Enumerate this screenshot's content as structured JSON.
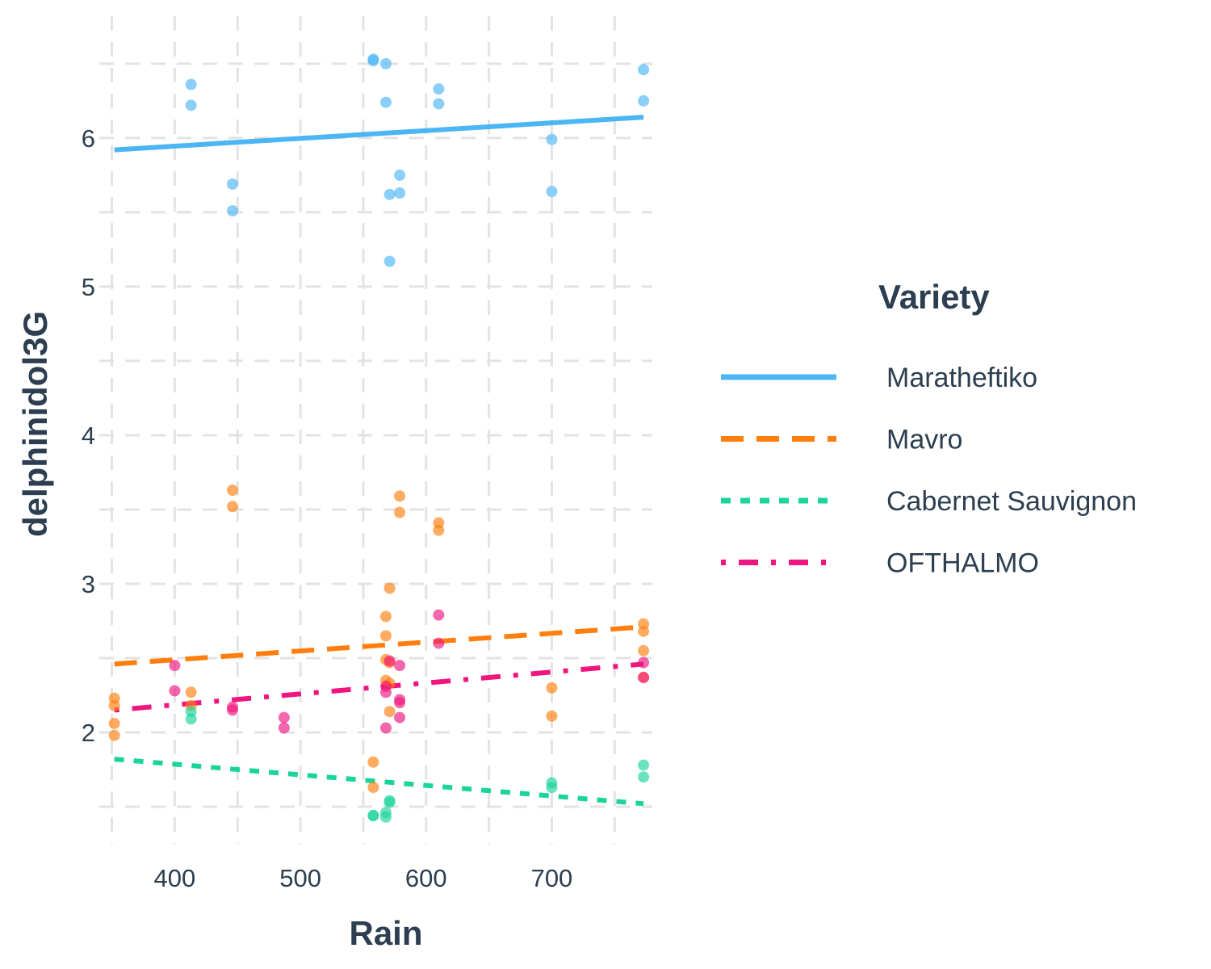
{
  "chart_data": {
    "type": "scatter",
    "title": "",
    "xlabel": "Rain",
    "ylabel": "delphinidol3G",
    "xlim": [
      340,
      780
    ],
    "ylim": [
      1.25,
      6.82
    ],
    "x_ticks": [
      400,
      500,
      600,
      700
    ],
    "y_ticks": [
      2,
      3,
      4,
      5,
      6
    ],
    "grid": true,
    "legend": {
      "title": "Variety",
      "position": "right"
    },
    "series": [
      {
        "name": "Maratheftiko",
        "color": "#4cb6f5",
        "line_style": "solid",
        "trend": {
          "x": [
            352,
            773
          ],
          "y": [
            5.92,
            6.14
          ]
        },
        "points": [
          [
            413,
            6.36
          ],
          [
            413,
            6.22
          ],
          [
            446,
            5.69
          ],
          [
            446,
            5.51
          ],
          [
            558,
            6.53
          ],
          [
            558,
            6.52
          ],
          [
            568,
            6.5
          ],
          [
            568,
            6.24
          ],
          [
            571,
            5.62
          ],
          [
            571,
            5.17
          ],
          [
            579,
            5.75
          ],
          [
            579,
            5.63
          ],
          [
            610,
            6.33
          ],
          [
            610,
            6.23
          ],
          [
            700,
            5.99
          ],
          [
            700,
            5.64
          ],
          [
            773,
            6.46
          ],
          [
            773,
            6.25
          ]
        ]
      },
      {
        "name": "Mavro",
        "color": "#ff7f0e",
        "line_style": "dashed",
        "trend": {
          "x": [
            352,
            773
          ],
          "y": [
            2.46,
            2.71
          ]
        },
        "points": [
          [
            352,
            2.23
          ],
          [
            352,
            2.18
          ],
          [
            352,
            2.06
          ],
          [
            352,
            1.98
          ],
          [
            413,
            2.27
          ],
          [
            413,
            2.18
          ],
          [
            446,
            3.63
          ],
          [
            446,
            3.52
          ],
          [
            558,
            1.8
          ],
          [
            558,
            1.63
          ],
          [
            568,
            2.78
          ],
          [
            568,
            2.65
          ],
          [
            568,
            2.49
          ],
          [
            568,
            2.35
          ],
          [
            571,
            2.97
          ],
          [
            571,
            2.47
          ],
          [
            571,
            2.33
          ],
          [
            571,
            2.14
          ],
          [
            579,
            3.59
          ],
          [
            579,
            3.48
          ],
          [
            610,
            3.41
          ],
          [
            610,
            3.36
          ],
          [
            700,
            2.3
          ],
          [
            700,
            2.11
          ],
          [
            773,
            2.73
          ],
          [
            773,
            2.68
          ],
          [
            773,
            2.55
          ],
          [
            773,
            2.37
          ]
        ]
      },
      {
        "name": "Cabernet Sauvignon",
        "color": "#1bd49c",
        "line_style": "dotted",
        "trend": {
          "x": [
            352,
            773
          ],
          "y": [
            1.82,
            1.52
          ]
        },
        "points": [
          [
            413,
            2.14
          ],
          [
            413,
            2.09
          ],
          [
            558,
            1.44
          ],
          [
            558,
            1.44
          ],
          [
            568,
            1.46
          ],
          [
            568,
            1.43
          ],
          [
            571,
            1.54
          ],
          [
            571,
            1.53
          ],
          [
            700,
            1.66
          ],
          [
            700,
            1.63
          ],
          [
            773,
            1.78
          ],
          [
            773,
            1.7
          ]
        ]
      },
      {
        "name": "OFTHALMO",
        "color": "#f0157f",
        "line_style": "dotdash",
        "trend": {
          "x": [
            352,
            773
          ],
          "y": [
            2.15,
            2.46
          ]
        },
        "points": [
          [
            400,
            2.45
          ],
          [
            400,
            2.28
          ],
          [
            446,
            2.17
          ],
          [
            446,
            2.15
          ],
          [
            487,
            2.1
          ],
          [
            487,
            2.03
          ],
          [
            568,
            2.31
          ],
          [
            568,
            2.27
          ],
          [
            568,
            2.03
          ],
          [
            571,
            2.48
          ],
          [
            579,
            2.45
          ],
          [
            579,
            2.22
          ],
          [
            579,
            2.2
          ],
          [
            579,
            2.1
          ],
          [
            610,
            2.79
          ],
          [
            610,
            2.6
          ],
          [
            773,
            2.47
          ],
          [
            773,
            2.37
          ]
        ]
      }
    ]
  }
}
